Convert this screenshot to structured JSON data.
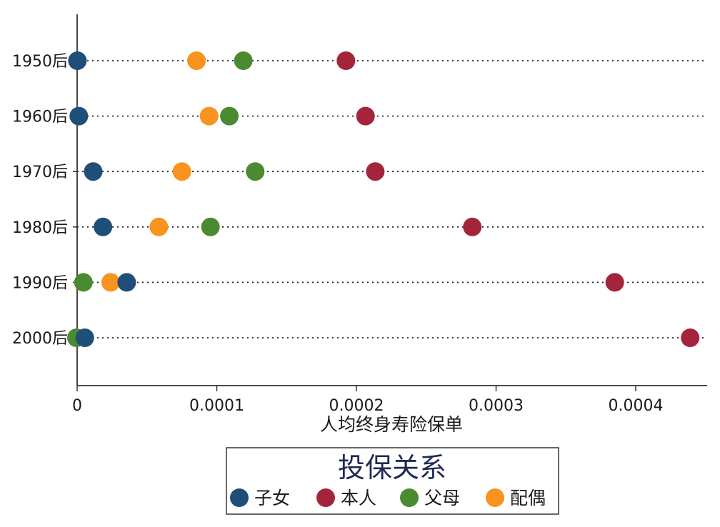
{
  "chart_data": {
    "type": "scatter",
    "categories": [
      "1950后",
      "1960后",
      "1970后",
      "1980后",
      "1990后",
      "2000后"
    ],
    "xlabel": "人均终身寿险保单",
    "ylabel": "",
    "xlim": [
      0,
      0.00045
    ],
    "xticks": [
      0,
      0.0001,
      0.0002,
      0.0003,
      0.0004
    ],
    "xtick_labels": [
      "0",
      "0.0001",
      "0.0002",
      "0.0003",
      "0.0004"
    ],
    "grid": "dotted horizontal lines per category",
    "legend": {
      "title": "投保关系",
      "placement": "bottom-center"
    },
    "series": [
      {
        "name": "子女",
        "color": "#1f4e79",
        "values": [
          2e-07,
          1.2e-06,
          1.15e-05,
          1.85e-05,
          3.55e-05,
          5.5e-06
        ]
      },
      {
        "name": "本人",
        "color": "#a4243b",
        "values": [
          0.0001925,
          0.0002065,
          0.0002135,
          0.000283,
          0.000385,
          0.000439
        ]
      },
      {
        "name": "父母",
        "color": "#4a8a30",
        "values": [
          0.000119,
          0.000109,
          0.0001275,
          9.55e-05,
          4.5e-06,
          -5e-07
        ]
      },
      {
        "name": "配偶",
        "color": "#f7931e",
        "values": [
          8.55e-05,
          9.45e-05,
          7.5e-05,
          5.85e-05,
          2.4e-05,
          null
        ]
      }
    ]
  }
}
